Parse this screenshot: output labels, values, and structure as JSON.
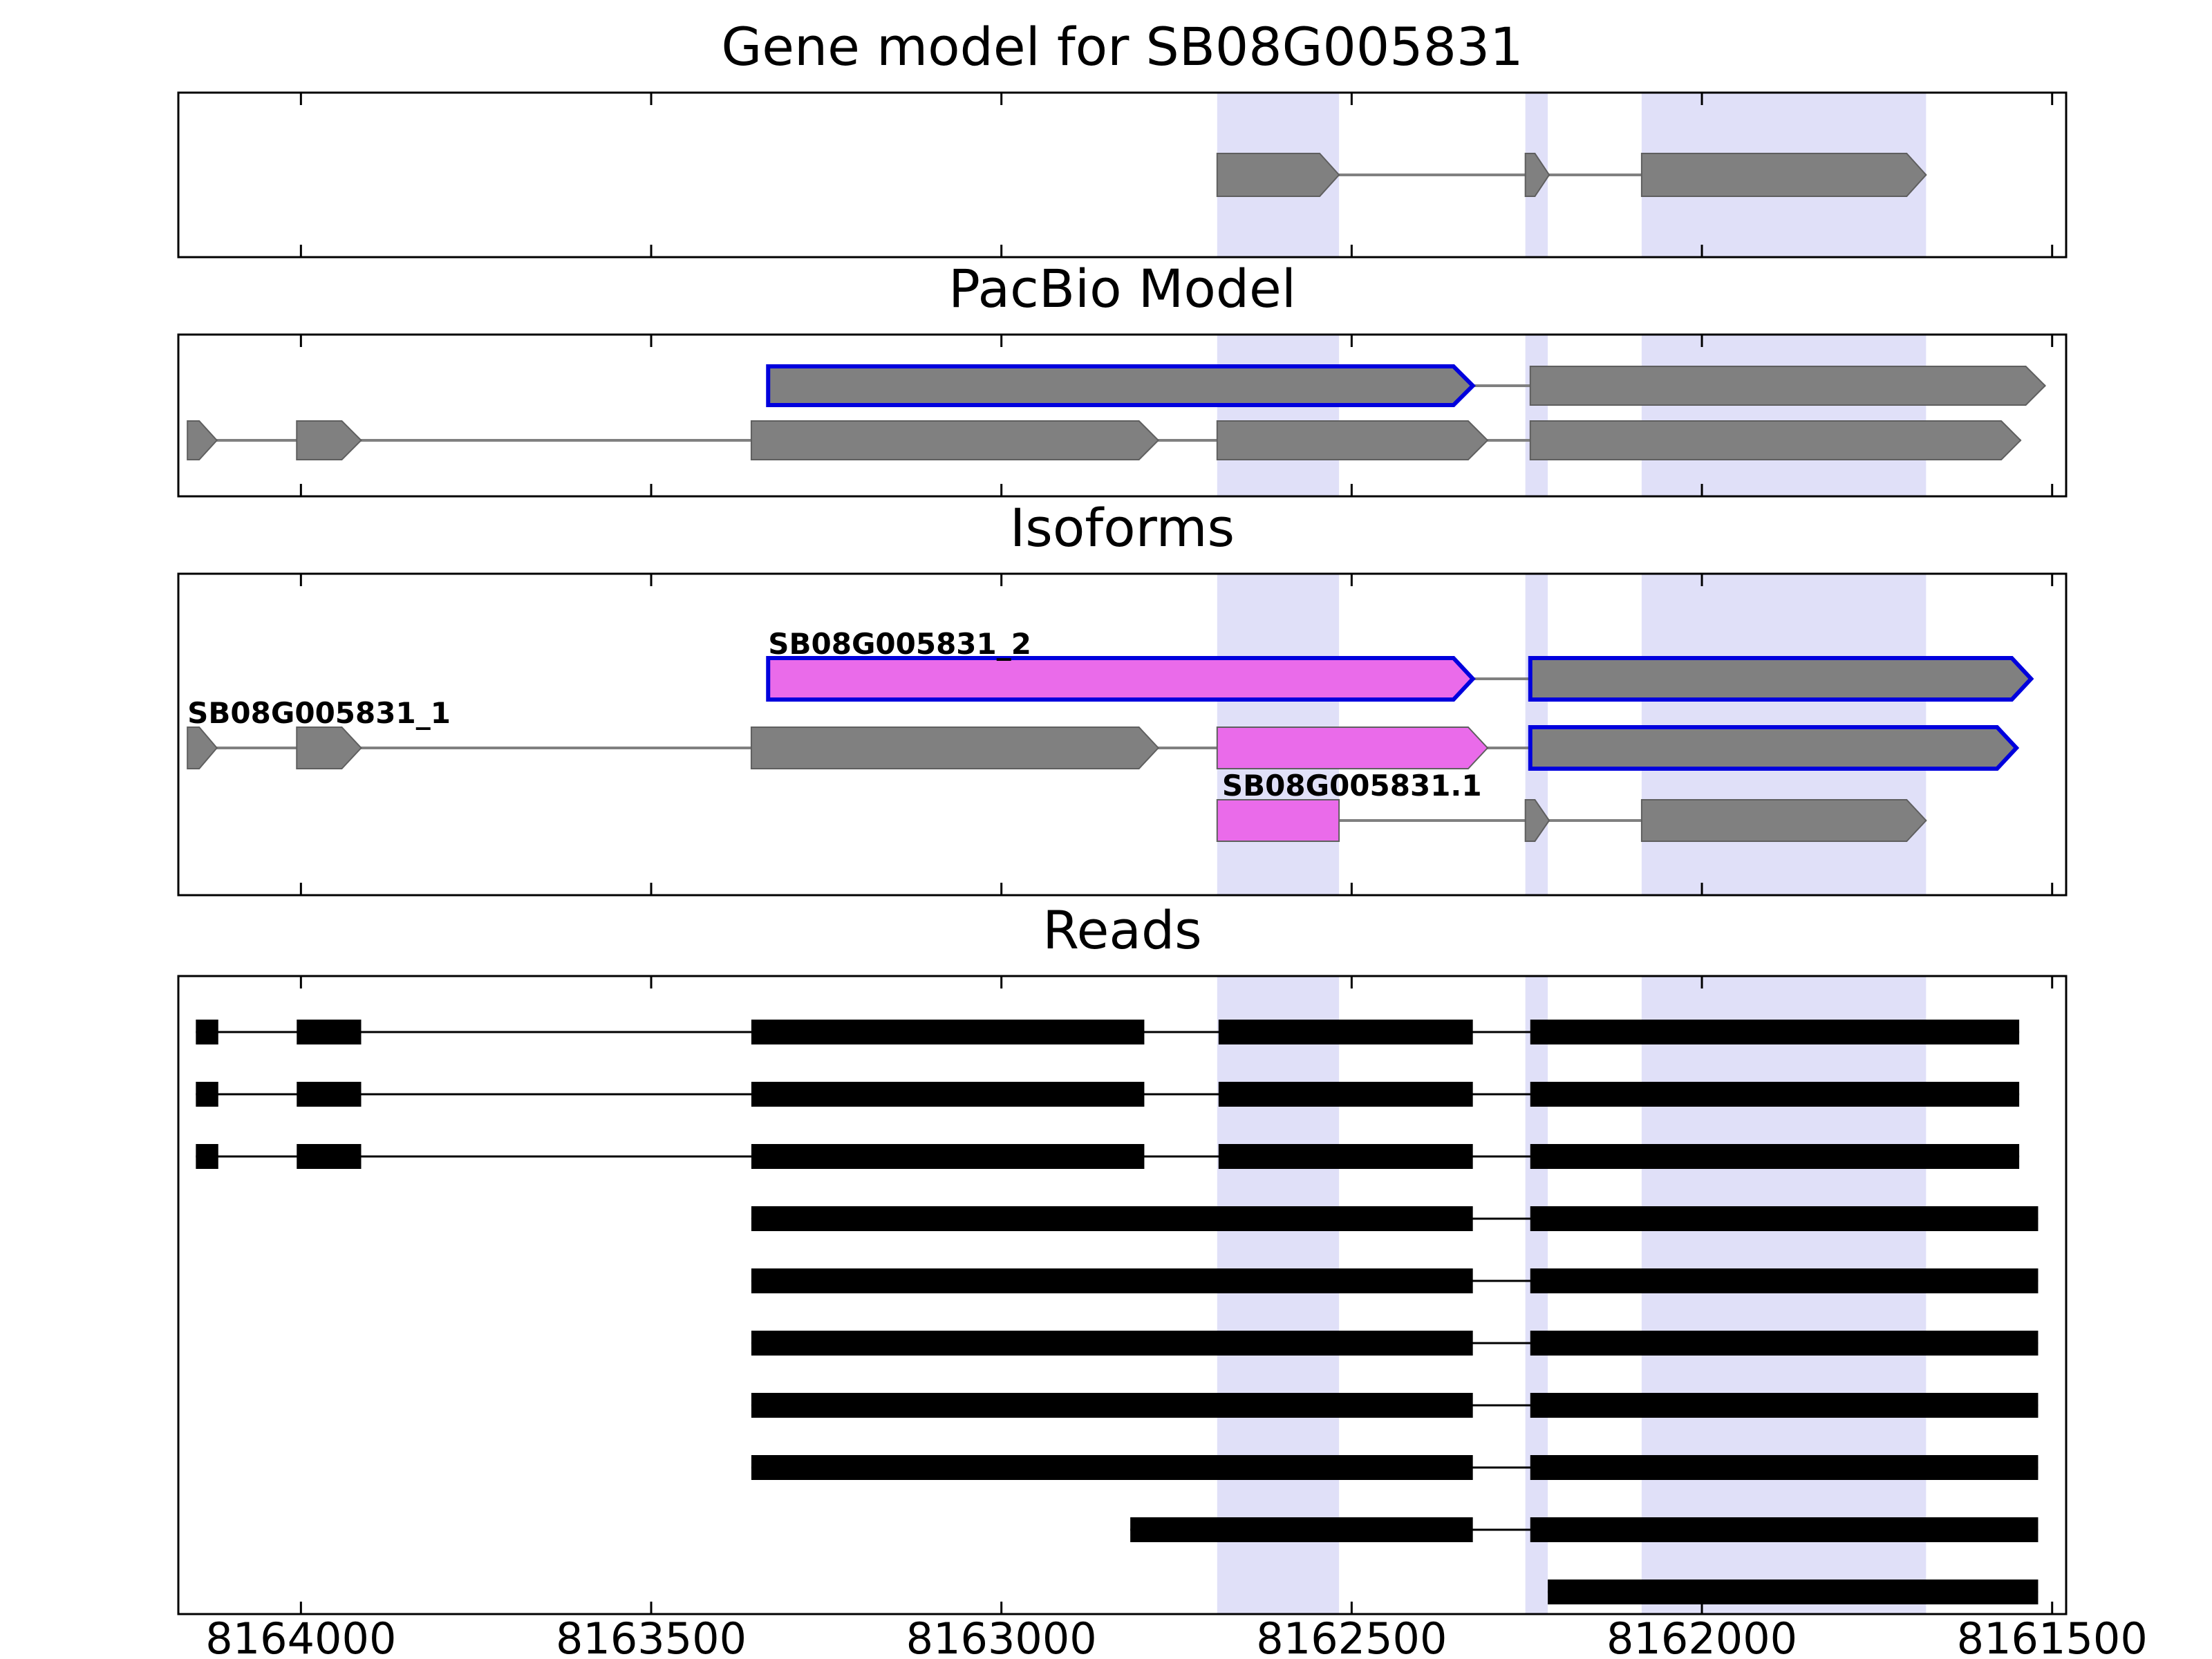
{
  "figure": {
    "background": "#ffffff"
  },
  "chart_data": {
    "type": "gene-model-browser",
    "x_axis": {
      "xlim": [
        8164175,
        8161480
      ],
      "reversed": true,
      "ticks": [
        8164000,
        8163500,
        8163000,
        8162500,
        8162000,
        8161500
      ],
      "tick_labels": [
        "8164000",
        "8163500",
        "8163000",
        "8162500",
        "8162000",
        "8161500"
      ],
      "xlabel": ""
    },
    "colors": {
      "exon_gray": "#808080",
      "exon_violet": "#ea6bea",
      "outline_blue": "#0000dd",
      "exon_edge": "#5f5f5f",
      "intron": "#808080",
      "read": "#000000",
      "highlight": "#e0e0f8",
      "panel_border": "#000000"
    },
    "highlight_regions": [
      {
        "start": 8162692,
        "end": 8162518
      },
      {
        "start": 8162252,
        "end": 8162220
      },
      {
        "start": 8162086,
        "end": 8161680
      }
    ],
    "panels": [
      {
        "id": "gene-model",
        "title": "Gene model for SB08G005831",
        "type": "transcripts",
        "transcripts": [
          {
            "label": "",
            "exons": [
              {
                "start": 8162692,
                "end": 8162518,
                "color": "gray",
                "arrow": true
              },
              {
                "start": 8162252,
                "end": 8162218,
                "color": "gray",
                "arrow": true
              },
              {
                "start": 8162086,
                "end": 8161680,
                "color": "gray",
                "arrow": true
              }
            ]
          }
        ]
      },
      {
        "id": "pacbio-model",
        "title": "PacBio Model",
        "type": "transcripts",
        "transcripts": [
          {
            "label": "",
            "exons": [
              {
                "start": 8163333,
                "end": 8162327,
                "color": "gray",
                "outline": "blue",
                "arrow": true
              },
              {
                "start": 8162245,
                "end": 8161510,
                "color": "gray",
                "arrow": true
              }
            ]
          },
          {
            "label": "",
            "exons": [
              {
                "start": 8164162,
                "end": 8164120,
                "color": "gray",
                "arrow": true
              },
              {
                "start": 8164006,
                "end": 8163914,
                "color": "gray",
                "arrow": true
              },
              {
                "start": 8163357,
                "end": 8162776,
                "color": "gray",
                "arrow": true
              },
              {
                "start": 8162692,
                "end": 8162306,
                "color": "gray",
                "arrow": true
              },
              {
                "start": 8162245,
                "end": 8161545,
                "color": "gray",
                "arrow": true
              }
            ]
          }
        ]
      },
      {
        "id": "isoforms",
        "title": "Isoforms",
        "type": "transcripts",
        "transcripts": [
          {
            "label": "SB08G005831_2",
            "label_anchor": 8163333,
            "exons": [
              {
                "start": 8163333,
                "end": 8162327,
                "color": "violet",
                "outline": "blue",
                "arrow": true
              },
              {
                "start": 8162245,
                "end": 8161530,
                "color": "gray",
                "outline": "blue",
                "arrow": true
              }
            ]
          },
          {
            "label": "SB08G005831_1",
            "label_anchor": 8164162,
            "exons": [
              {
                "start": 8164162,
                "end": 8164120,
                "color": "gray",
                "arrow": true
              },
              {
                "start": 8164006,
                "end": 8163914,
                "color": "gray",
                "arrow": true
              },
              {
                "start": 8163357,
                "end": 8162776,
                "color": "gray",
                "arrow": true
              },
              {
                "start": 8162692,
                "end": 8162306,
                "color": "violet",
                "arrow": true
              },
              {
                "start": 8162245,
                "end": 8161551,
                "color": "gray",
                "outline": "blue",
                "arrow": true
              }
            ]
          },
          {
            "label": "SB08G005831.1",
            "label_anchor": 8162685,
            "exons": [
              {
                "start": 8162692,
                "end": 8162518,
                "color": "violet",
                "arrow": false
              },
              {
                "start": 8162252,
                "end": 8162218,
                "color": "gray",
                "arrow": true
              },
              {
                "start": 8162086,
                "end": 8161680,
                "color": "gray",
                "arrow": true
              }
            ]
          }
        ]
      },
      {
        "id": "reads",
        "title": "Reads",
        "type": "reads",
        "reads": [
          {
            "blocks": [
              [
                8164150,
                8164118
              ],
              [
                8164006,
                8163914
              ],
              [
                8163357,
                8162796
              ],
              [
                8162690,
                8162327
              ],
              [
                8162245,
                8161547
              ]
            ]
          },
          {
            "blocks": [
              [
                8164150,
                8164118
              ],
              [
                8164006,
                8163914
              ],
              [
                8163357,
                8162796
              ],
              [
                8162690,
                8162327
              ],
              [
                8162245,
                8161547
              ]
            ]
          },
          {
            "blocks": [
              [
                8164150,
                8164118
              ],
              [
                8164006,
                8163914
              ],
              [
                8163357,
                8162796
              ],
              [
                8162690,
                8162327
              ],
              [
                8162245,
                8161547
              ]
            ]
          },
          {
            "blocks": [
              [
                8163357,
                8162327
              ],
              [
                8162245,
                8161520
              ]
            ]
          },
          {
            "blocks": [
              [
                8163357,
                8162327
              ],
              [
                8162245,
                8161520
              ]
            ]
          },
          {
            "blocks": [
              [
                8163357,
                8162327
              ],
              [
                8162245,
                8161520
              ]
            ]
          },
          {
            "blocks": [
              [
                8163357,
                8162327
              ],
              [
                8162245,
                8161520
              ]
            ]
          },
          {
            "blocks": [
              [
                8163357,
                8162327
              ],
              [
                8162245,
                8161520
              ]
            ]
          },
          {
            "blocks": [
              [
                8162816,
                8162327
              ],
              [
                8162245,
                8161520
              ]
            ]
          },
          {
            "blocks": [
              [
                8162220,
                8161520
              ]
            ]
          }
        ]
      }
    ]
  }
}
